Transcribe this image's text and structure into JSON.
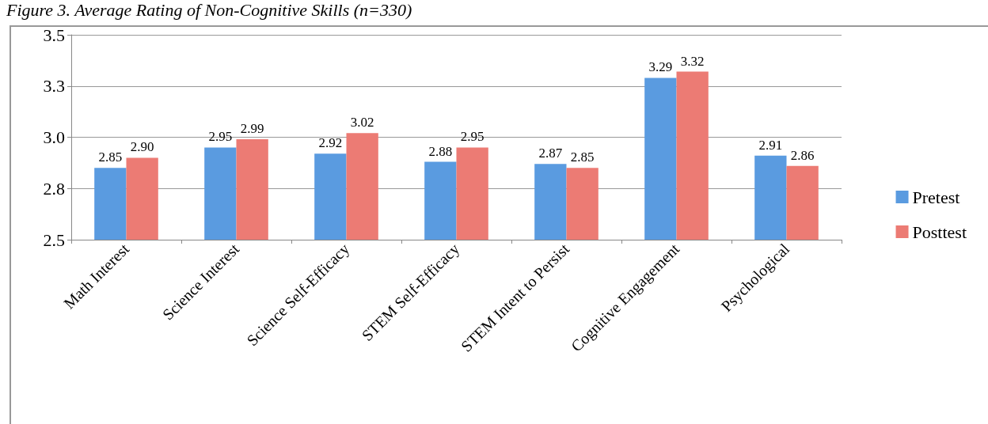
{
  "chart_data": {
    "type": "bar",
    "title": "Figure 3. Average Rating of Non-Cognitive Skills (n=330)",
    "categories": [
      "Math Interest",
      "Science Interest",
      "Science Self-Efficacy",
      "STEM Self-Efficacy",
      "STEM Intent to Persist",
      "Cognitive Engagement",
      "Psychological"
    ],
    "series": [
      {
        "name": "Pretest",
        "color": "#5a9be0",
        "values": [
          2.85,
          2.95,
          2.92,
          2.88,
          2.87,
          3.29,
          2.91
        ],
        "value_labels": [
          "2.85",
          "2.95",
          "2.92",
          "2.88",
          "2.87",
          "3.29",
          "2.91"
        ]
      },
      {
        "name": "Posttest",
        "color": "#ec7b74",
        "values": [
          2.9,
          2.99,
          3.02,
          2.95,
          2.85,
          3.32,
          2.86
        ],
        "value_labels": [
          "2.90",
          "2.99",
          "3.02",
          "2.95",
          "2.85",
          "3.32",
          "2.86"
        ]
      }
    ],
    "ylim": [
      2.5,
      3.5
    ],
    "yticks": [
      {
        "value": 2.5,
        "label": "2.5"
      },
      {
        "value": 2.75,
        "label": "2.8"
      },
      {
        "value": 3.0,
        "label": "3.0"
      },
      {
        "value": 3.25,
        "label": "3.3"
      },
      {
        "value": 3.5,
        "label": "3.5"
      }
    ],
    "grid": "y",
    "legend": "right"
  }
}
